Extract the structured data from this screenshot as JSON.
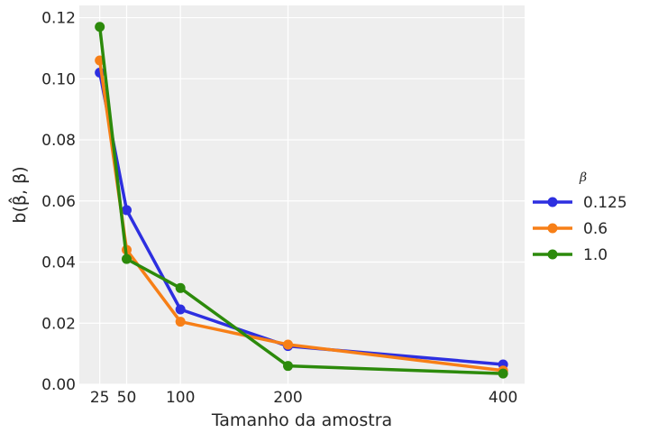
{
  "chart_data": {
    "type": "line",
    "xlabel": "Tamanho da amostra",
    "ylabel": "b(β̂, β)",
    "x": [
      25,
      50,
      100,
      200,
      400
    ],
    "xticks": [
      25,
      50,
      100,
      200,
      400
    ],
    "xlim": [
      6,
      420
    ],
    "ylim": [
      0,
      0.124
    ],
    "yticks": [
      0.0,
      0.02,
      0.04,
      0.06,
      0.08,
      0.1,
      0.12
    ],
    "grid": true,
    "legend_title": "β",
    "legend_position": "right",
    "series": [
      {
        "name": "0.125",
        "color": "#2d2fe0",
        "values": [
          0.102,
          0.057,
          0.0245,
          0.0125,
          0.0065
        ]
      },
      {
        "name": "0.6",
        "color": "#f77f17",
        "values": [
          0.106,
          0.044,
          0.0205,
          0.013,
          0.0045
        ]
      },
      {
        "name": "1.0",
        "color": "#2c8a0b",
        "values": [
          0.117,
          0.041,
          0.0315,
          0.006,
          0.0035
        ]
      }
    ]
  }
}
